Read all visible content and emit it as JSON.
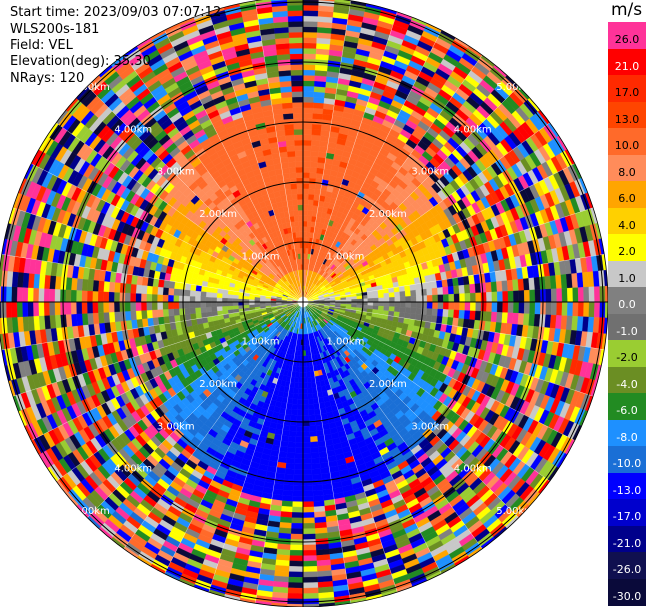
{
  "header": {
    "start_time": "Start time: 2023/09/03 07:07:12",
    "instrument": "WLS200s-181",
    "field": "Field: VEL",
    "elevation": "Elevation(deg): 35.30",
    "nrays": "NRays: 120"
  },
  "colorbar": {
    "unit": "m/s",
    "ticks": [
      "26.0",
      "21.0",
      "17.0",
      "13.0",
      "10.0",
      "8.0",
      "6.0",
      "4.0",
      "2.0",
      "1.0",
      "0.0",
      "-1.0",
      "-2.0",
      "-4.0",
      "-6.0",
      "-8.0",
      "-10.0",
      "-13.0",
      "-17.0",
      "-21.0",
      "-26.0",
      "-30.0"
    ],
    "colors": [
      "#ff3399",
      "#ff0000",
      "#ff2a00",
      "#ff4500",
      "#ff6a2a",
      "#ff8c5a",
      "#ffa500",
      "#ffd000",
      "#ffff00",
      "#c8c8c8",
      "#808080",
      "#707070",
      "#9acd32",
      "#6b8e23",
      "#228b22",
      "#1e90ff",
      "#1a6fd6",
      "#0000ff",
      "#0000cd",
      "#00008b",
      "#101050",
      "#0a0a3a"
    ]
  },
  "chart_data": {
    "type": "ppi-polar",
    "title": "",
    "field": "VEL",
    "unit": "m/s",
    "nrays": 120,
    "range_rings_km": [
      1.0,
      2.0,
      3.0,
      4.0,
      5.0
    ],
    "range_labels": [
      "1.00km",
      "2.00km",
      "3.00km",
      "4.00km",
      "5.00km"
    ],
    "value_range": [
      -30.0,
      26.0
    ],
    "sectors": [
      {
        "direction": "north (upper)",
        "velocity_ms": [
          8,
          13
        ]
      },
      {
        "direction": "east-west near center",
        "velocity_ms": [
          1,
          4
        ]
      },
      {
        "direction": "south (lower)",
        "velocity_ms": [
          -10,
          -6
        ]
      },
      {
        "direction": "outer ranges (beyond ~3 km)",
        "velocity_ms": "noise, mixed colors"
      }
    ]
  }
}
